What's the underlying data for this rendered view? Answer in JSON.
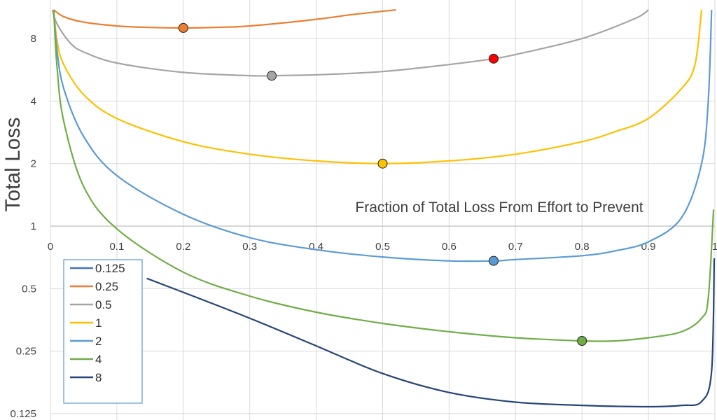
{
  "chart_data": {
    "type": "line",
    "xlabel": "Fraction of Total Loss From Effort to Prevent",
    "ylabel": "Total Loss",
    "x_ticks": [
      "0",
      "0.1",
      "0.2",
      "0.3",
      "0.4",
      "0.5",
      "0.6",
      "0.7",
      "0.8",
      "0.9",
      "1"
    ],
    "y_ticks": [
      "0.125",
      "0.25",
      "0.5",
      "1",
      "2",
      "4",
      "8"
    ],
    "xlim": [
      0,
      1
    ],
    "ylim": [
      0.125,
      11
    ],
    "y_scale": "log2",
    "grid": true,
    "legend_position": "bottom-left",
    "series": [
      {
        "name": "0.125",
        "color": "#264478",
        "legend_color": "#4472c4",
        "x": [
          0.145,
          0.2,
          0.3,
          0.4,
          0.5,
          0.6,
          0.7,
          0.8,
          0.9,
          0.95,
          0.98,
          0.995,
          0.999
        ],
        "y": [
          0.56,
          0.48,
          0.36,
          0.265,
          0.195,
          0.158,
          0.142,
          0.137,
          0.135,
          0.137,
          0.143,
          0.2,
          0.7
        ],
        "optimum": null
      },
      {
        "name": "0.25",
        "color": "#ed7d31",
        "x": [
          0.005,
          0.02,
          0.05,
          0.1,
          0.15,
          0.2,
          0.25,
          0.3,
          0.4,
          0.45,
          0.52
        ],
        "y": [
          11,
          10.2,
          9.6,
          9.2,
          9.05,
          9.0,
          9.06,
          9.2,
          9.9,
          10.4,
          11
        ],
        "optimum": {
          "x": 0.2,
          "y": 9.0,
          "color": "#ed7d31"
        }
      },
      {
        "name": "0.5",
        "color": "#a5a5a5",
        "x": [
          0.003,
          0.01,
          0.03,
          0.05,
          0.1,
          0.2,
          0.3,
          0.333,
          0.4,
          0.5,
          0.6,
          0.667,
          0.7,
          0.8,
          0.88,
          0.9
        ],
        "y": [
          11,
          9.4,
          7.6,
          6.9,
          6.1,
          5.5,
          5.3,
          5.3,
          5.35,
          5.55,
          6.0,
          6.4,
          6.7,
          8.0,
          10.0,
          11
        ],
        "optimum": {
          "x": 0.333,
          "y": 5.3,
          "color": "#a5a5a5"
        },
        "marker2": {
          "x": 0.667,
          "y": 6.4,
          "color": "#ff0000"
        }
      },
      {
        "name": "1",
        "color": "#ffc000",
        "x": [
          0.005,
          0.01,
          0.02,
          0.05,
          0.1,
          0.2,
          0.3,
          0.4,
          0.5,
          0.6,
          0.7,
          0.8,
          0.85,
          0.9,
          0.95,
          0.97,
          0.98
        ],
        "y": [
          11,
          7.8,
          6.0,
          4.3,
          3.3,
          2.55,
          2.22,
          2.06,
          2.0,
          2.06,
          2.22,
          2.55,
          2.85,
          3.3,
          4.6,
          6.0,
          11
        ],
        "optimum": {
          "x": 0.5,
          "y": 2.0,
          "color": "#ffc000"
        }
      },
      {
        "name": "2",
        "color": "#5b9bd5",
        "x": [
          0.005,
          0.01,
          0.02,
          0.05,
          0.1,
          0.2,
          0.3,
          0.4,
          0.5,
          0.6,
          0.667,
          0.7,
          0.8,
          0.85,
          0.9,
          0.95,
          0.98,
          0.99,
          0.995
        ],
        "y": [
          11,
          7.0,
          4.6,
          2.7,
          1.75,
          1.14,
          0.88,
          0.77,
          0.71,
          0.68,
          0.68,
          0.69,
          0.72,
          0.76,
          0.84,
          1.1,
          2.0,
          4.0,
          11
        ],
        "optimum": {
          "x": 0.667,
          "y": 0.68,
          "color": "#5b9bd5"
        }
      },
      {
        "name": "4",
        "color": "#70ad47",
        "x": [
          0.005,
          0.01,
          0.02,
          0.05,
          0.1,
          0.2,
          0.3,
          0.4,
          0.5,
          0.6,
          0.7,
          0.8,
          0.85,
          0.9,
          0.95,
          0.98,
          0.99,
          0.998
        ],
        "y": [
          11,
          5.8,
          3.2,
          1.55,
          0.97,
          0.6,
          0.46,
          0.385,
          0.34,
          0.31,
          0.29,
          0.28,
          0.28,
          0.29,
          0.31,
          0.36,
          0.45,
          1.2
        ],
        "optimum": {
          "x": 0.8,
          "y": 0.28,
          "color": "#70ad47"
        }
      },
      {
        "name": "8",
        "color": "#264478",
        "x": [],
        "y": [],
        "optimum": null
      }
    ]
  }
}
